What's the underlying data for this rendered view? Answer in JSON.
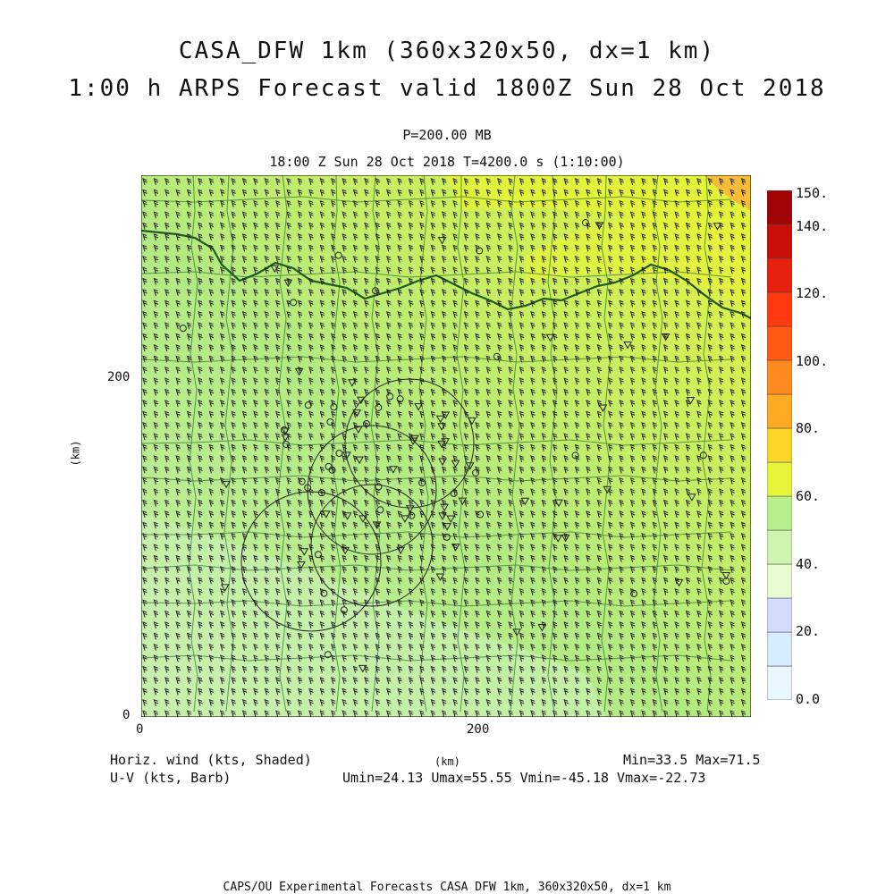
{
  "title_line1": "CASA_DFW 1km (360x320x50, dx=1 km)",
  "title_line2": "1:00 h ARPS Forecast valid 1800Z Sun 28 Oct 2018",
  "level": "P=200.00 MB",
  "time_line": "18:00 Z Sun 28 Oct 2018   T=4200.0 s (1:10:00)",
  "axes": {
    "x_label": "(km)",
    "y_label": "(km)",
    "x_ticks": [
      "0",
      "200"
    ],
    "y_ticks": [
      "0",
      "200"
    ],
    "x_range_km": [
      0,
      360
    ],
    "y_range_km": [
      0,
      320
    ]
  },
  "colorbar": {
    "labels": [
      "0.0",
      "20.",
      "40.",
      "60.",
      "80.",
      "100.",
      "120.",
      "140.",
      "150."
    ],
    "levels": [
      0,
      10,
      20,
      30,
      40,
      50,
      60,
      70,
      80,
      90,
      100,
      110,
      120,
      130,
      140,
      150
    ],
    "colors": [
      "#e8f6ff",
      "#d6ecff",
      "#d4dcff",
      "#e6fbd2",
      "#cdf5b0",
      "#b9ee8a",
      "#e4f53a",
      "#ffd52a",
      "#ffaa22",
      "#ff8a1e",
      "#ff5a14",
      "#ff3a0e",
      "#e8200e",
      "#c80e0a",
      "#a00404"
    ]
  },
  "legend": {
    "shaded": "Horiz. wind (kts, Shaded)",
    "barb": "U-V (kts, Barb)",
    "center_label": "(km)",
    "minmax": "Min=33.5  Max=71.5",
    "uv_stats": "Umin=24.13 Umax=55.55 Vmin=-45.18 Vmax=-22.73"
  },
  "field": {
    "min": 33.5,
    "max": 71.5,
    "umin": 24.13,
    "umax": 55.55,
    "vmin": -45.18,
    "vmax": -22.73
  },
  "footer": "CAPS/OU Experimental Forecasts  CASA DFW 1km, 360x320x50, dx=1 km"
}
